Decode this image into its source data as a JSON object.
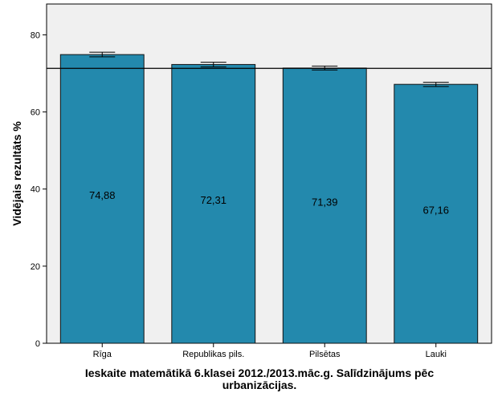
{
  "chart_data": {
    "type": "bar",
    "title": "",
    "xlabel_lines": [
      "Ieskaite matemātikā 6.klasei 2012./2013.māc.g. Salīdzinājums pēc",
      "urbanizācijas."
    ],
    "ylabel": "Vidējais rezultāts %",
    "categories": [
      "Rīga",
      "Republikas pils.",
      "Pilsētas",
      "Lauki"
    ],
    "values": [
      74.88,
      72.31,
      71.39,
      67.16
    ],
    "value_labels": [
      "74,88",
      "72,31",
      "71,39",
      "67,16"
    ],
    "error_bars": [
      {
        "low": 74.3,
        "high": 75.5
      },
      {
        "low": 71.7,
        "high": 72.9
      },
      {
        "low": 70.9,
        "high": 71.9
      },
      {
        "low": 66.6,
        "high": 67.7
      }
    ],
    "reference_line": 71.3,
    "ylim": [
      0,
      88
    ],
    "yticks": [
      0,
      20,
      40,
      60,
      80
    ],
    "grid": false,
    "legend": "none",
    "colors": {
      "bar": "#2389ad",
      "bar_stroke": "#111111",
      "plot_background": "#f0f0f0",
      "reference_line": "#000000"
    }
  }
}
